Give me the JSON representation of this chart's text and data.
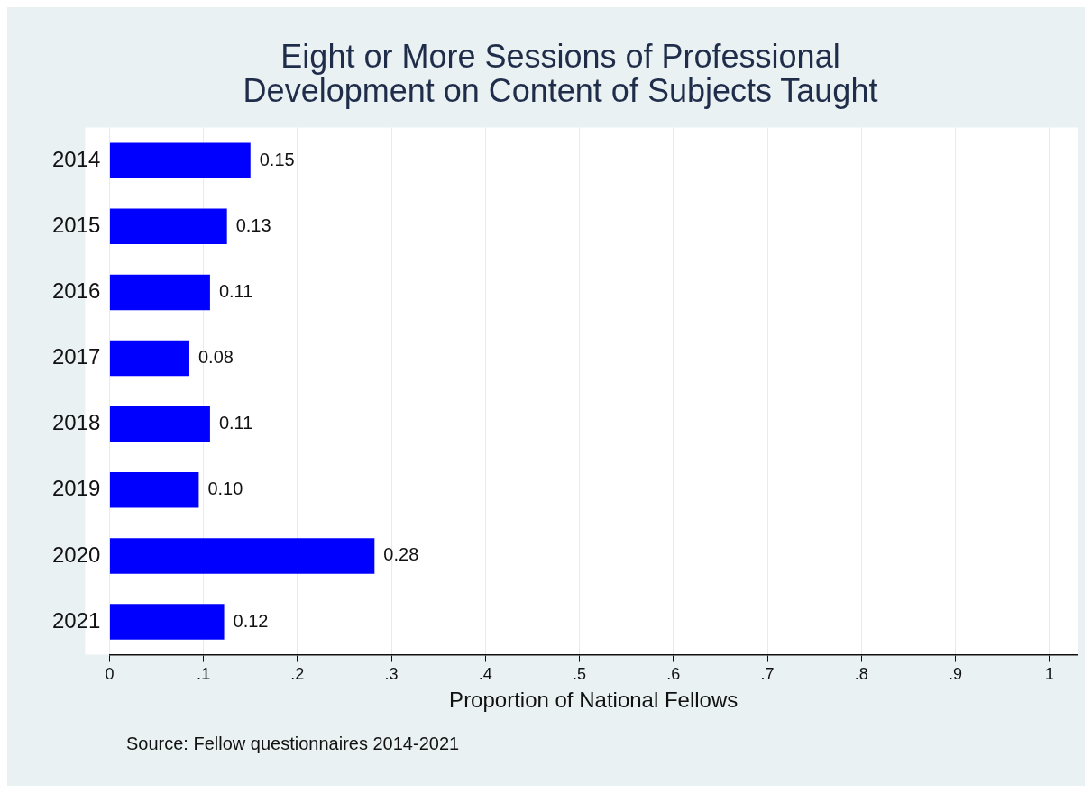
{
  "chart_data": {
    "type": "bar",
    "orientation": "horizontal",
    "title": "Eight or More Sessions of Professional Development on Content of Subjects Taught",
    "xlabel": "Proportion of National Fellows",
    "categories": [
      "2014",
      "2015",
      "2016",
      "2017",
      "2018",
      "2019",
      "2020",
      "2021"
    ],
    "values": [
      0.15,
      0.125,
      0.107,
      0.085,
      0.107,
      0.095,
      0.282,
      0.122
    ],
    "value_labels": [
      "0.15",
      "0.13",
      "0.11",
      "0.08",
      "0.11",
      "0.10",
      "0.28",
      "0.12"
    ],
    "color": "#0000ff",
    "xlim": [
      0,
      1.03
    ],
    "xticks": [
      0,
      {
        "value": 0.1,
        "label": ".1"
      },
      {
        "value": 0.2,
        "label": ".2"
      },
      {
        "value": 0.3,
        "label": ".3"
      },
      {
        "value": 0.4,
        "label": ".4"
      },
      {
        "value": 0.5,
        "label": ".5"
      },
      {
        "value": 0.6,
        "label": ".6"
      },
      {
        "value": 0.7,
        "label": ".7"
      },
      {
        "value": 0.8,
        "label": ".8"
      },
      {
        "value": 0.9,
        "label": ".9"
      },
      1
    ],
    "grid": "x",
    "annotations": [
      "Source: Fellow questionnaires 2014-2021"
    ]
  }
}
